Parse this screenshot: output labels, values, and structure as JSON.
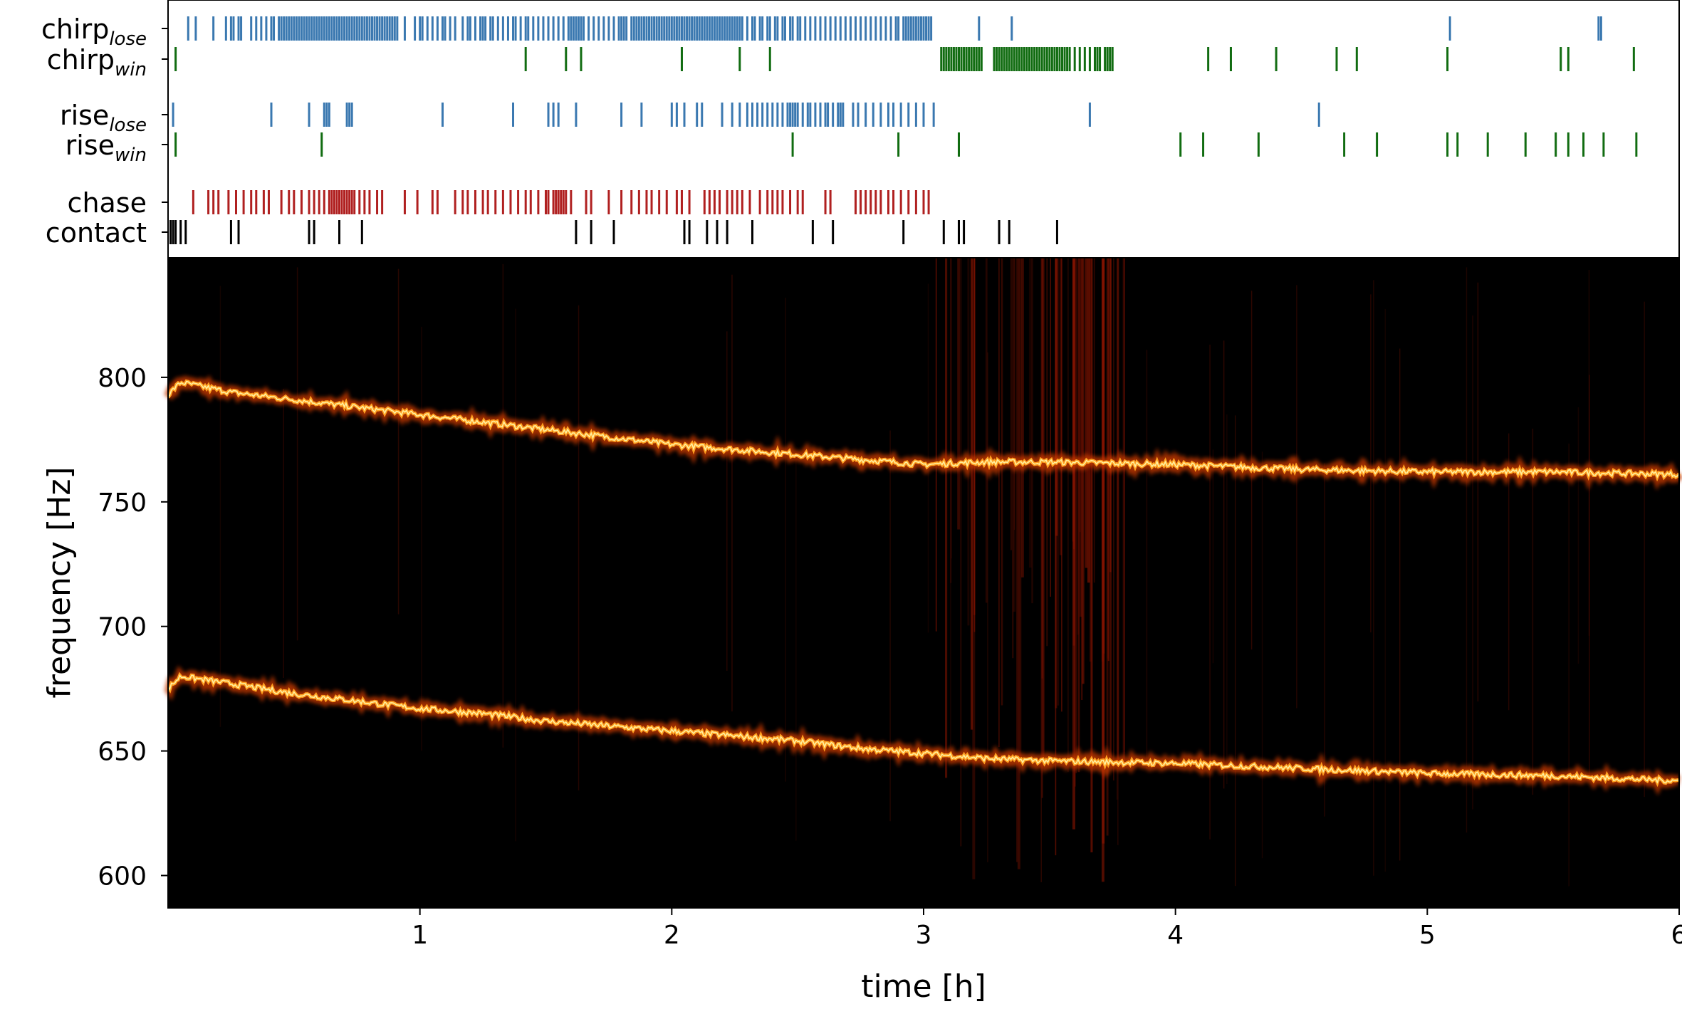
{
  "chart_data": [
    {
      "type": "event_raster",
      "xlim": [
        0,
        6
      ],
      "x_unit": "h",
      "rows": [
        {
          "key": "chirp_lose",
          "label_main": "chirp",
          "label_sub": "lose",
          "color": "#3a78b0",
          "events": [
            0.08,
            0.11,
            0.18,
            0.23,
            0.25,
            0.26,
            0.28,
            0.29,
            0.33,
            0.35,
            0.37,
            0.39,
            0.41,
            0.42,
            0.44,
            0.45,
            0.46,
            0.47,
            0.48,
            0.49,
            0.5,
            0.51,
            0.52,
            0.53,
            0.54,
            0.55,
            0.56,
            0.57,
            0.58,
            0.59,
            0.6,
            0.61,
            0.62,
            0.63,
            0.64,
            0.65,
            0.66,
            0.67,
            0.68,
            0.69,
            0.7,
            0.71,
            0.72,
            0.73,
            0.74,
            0.75,
            0.76,
            0.77,
            0.78,
            0.79,
            0.8,
            0.81,
            0.82,
            0.83,
            0.84,
            0.85,
            0.86,
            0.87,
            0.88,
            0.89,
            0.9,
            0.91,
            0.94,
            0.98,
            1.0,
            1.01,
            1.03,
            1.05,
            1.07,
            1.09,
            1.1,
            1.12,
            1.14,
            1.17,
            1.19,
            1.2,
            1.22,
            1.24,
            1.25,
            1.26,
            1.28,
            1.29,
            1.31,
            1.33,
            1.35,
            1.37,
            1.38,
            1.4,
            1.42,
            1.43,
            1.45,
            1.47,
            1.49,
            1.51,
            1.53,
            1.55,
            1.57,
            1.59,
            1.6,
            1.61,
            1.62,
            1.63,
            1.64,
            1.65,
            1.67,
            1.69,
            1.71,
            1.73,
            1.75,
            1.77,
            1.79,
            1.8,
            1.81,
            1.82,
            1.84,
            1.85,
            1.86,
            1.87,
            1.88,
            1.89,
            1.9,
            1.91,
            1.92,
            1.93,
            1.94,
            1.95,
            1.96,
            1.97,
            1.98,
            1.99,
            2.0,
            2.01,
            2.02,
            2.03,
            2.04,
            2.05,
            2.06,
            2.07,
            2.08,
            2.09,
            2.1,
            2.11,
            2.12,
            2.13,
            2.14,
            2.15,
            2.16,
            2.17,
            2.18,
            2.19,
            2.2,
            2.21,
            2.22,
            2.23,
            2.24,
            2.25,
            2.26,
            2.27,
            2.28,
            2.3,
            2.32,
            2.33,
            2.35,
            2.36,
            2.38,
            2.39,
            2.41,
            2.42,
            2.44,
            2.45,
            2.47,
            2.48,
            2.5,
            2.51,
            2.53,
            2.55,
            2.57,
            2.59,
            2.61,
            2.63,
            2.65,
            2.67,
            2.69,
            2.71,
            2.73,
            2.75,
            2.77,
            2.79,
            2.81,
            2.83,
            2.85,
            2.87,
            2.89,
            2.9,
            2.92,
            2.93,
            2.94,
            2.95,
            2.96,
            2.97,
            2.98,
            2.99,
            3.0,
            3.01,
            3.02,
            3.03,
            3.22,
            3.35,
            5.09,
            5.68,
            5.69
          ]
        },
        {
          "key": "chirp_win",
          "label_main": "chirp",
          "label_sub": "win",
          "color": "#116c11",
          "events": [
            0.03,
            1.42,
            1.58,
            1.64,
            2.04,
            2.27,
            2.39,
            3.07,
            3.08,
            3.09,
            3.1,
            3.11,
            3.12,
            3.13,
            3.14,
            3.15,
            3.16,
            3.17,
            3.18,
            3.19,
            3.2,
            3.21,
            3.22,
            3.23,
            3.28,
            3.29,
            3.3,
            3.31,
            3.32,
            3.33,
            3.34,
            3.35,
            3.36,
            3.37,
            3.38,
            3.39,
            3.4,
            3.41,
            3.42,
            3.43,
            3.44,
            3.45,
            3.46,
            3.47,
            3.48,
            3.49,
            3.5,
            3.51,
            3.52,
            3.53,
            3.54,
            3.55,
            3.56,
            3.57,
            3.58,
            3.6,
            3.62,
            3.64,
            3.66,
            3.68,
            3.69,
            3.7,
            3.72,
            3.73,
            3.74,
            3.75,
            4.13,
            4.22,
            4.4,
            4.64,
            4.72,
            5.08,
            5.53,
            5.56,
            5.82
          ]
        },
        {
          "key": "rise_lose",
          "label_main": "rise",
          "label_sub": "lose",
          "color": "#3a78b0",
          "events": [
            0.02,
            0.41,
            0.56,
            0.62,
            0.63,
            0.64,
            0.71,
            0.72,
            0.73,
            1.09,
            1.37,
            1.51,
            1.53,
            1.55,
            1.62,
            1.8,
            1.88,
            2.0,
            2.02,
            2.05,
            2.1,
            2.12,
            2.2,
            2.24,
            2.27,
            2.3,
            2.32,
            2.34,
            2.36,
            2.38,
            2.4,
            2.42,
            2.44,
            2.46,
            2.47,
            2.48,
            2.49,
            2.5,
            2.52,
            2.54,
            2.55,
            2.57,
            2.59,
            2.61,
            2.62,
            2.64,
            2.66,
            2.67,
            2.68,
            2.72,
            2.74,
            2.77,
            2.8,
            2.83,
            2.86,
            2.88,
            2.91,
            2.94,
            2.97,
            3.0,
            3.04,
            3.66,
            4.57
          ]
        },
        {
          "key": "rise_win",
          "label_main": "rise",
          "label_sub": "win",
          "color": "#116c11",
          "events": [
            0.03,
            0.61,
            2.48,
            2.9,
            3.14,
            4.02,
            4.11,
            4.33,
            4.67,
            4.8,
            5.08,
            5.12,
            5.24,
            5.39,
            5.51,
            5.56,
            5.62,
            5.7,
            5.83
          ]
        },
        {
          "key": "chase",
          "label_main": "chase",
          "label_sub": "",
          "color": "#b02020",
          "events": [
            0.1,
            0.16,
            0.18,
            0.2,
            0.24,
            0.27,
            0.3,
            0.33,
            0.35,
            0.38,
            0.4,
            0.45,
            0.48,
            0.5,
            0.53,
            0.56,
            0.58,
            0.6,
            0.62,
            0.64,
            0.65,
            0.66,
            0.67,
            0.68,
            0.69,
            0.7,
            0.71,
            0.72,
            0.73,
            0.74,
            0.76,
            0.78,
            0.8,
            0.83,
            0.85,
            0.94,
            0.99,
            1.05,
            1.07,
            1.14,
            1.17,
            1.19,
            1.22,
            1.25,
            1.27,
            1.3,
            1.33,
            1.36,
            1.39,
            1.42,
            1.44,
            1.47,
            1.5,
            1.51,
            1.53,
            1.54,
            1.55,
            1.56,
            1.57,
            1.58,
            1.6,
            1.66,
            1.68,
            1.75,
            1.8,
            1.84,
            1.87,
            1.9,
            1.92,
            1.95,
            1.98,
            2.02,
            2.04,
            2.07,
            2.13,
            2.15,
            2.17,
            2.19,
            2.22,
            2.24,
            2.26,
            2.28,
            2.31,
            2.35,
            2.38,
            2.4,
            2.42,
            2.44,
            2.47,
            2.5,
            2.52,
            2.61,
            2.63,
            2.73,
            2.75,
            2.77,
            2.79,
            2.81,
            2.83,
            2.86,
            2.88,
            2.91,
            2.94,
            2.97,
            3.0,
            3.02
          ]
        },
        {
          "key": "contact",
          "label_main": "contact",
          "label_sub": "",
          "color": "#000000",
          "events": [
            0.01,
            0.02,
            0.03,
            0.05,
            0.07,
            0.25,
            0.28,
            0.56,
            0.58,
            0.68,
            0.77,
            1.62,
            1.68,
            1.77,
            2.05,
            2.07,
            2.14,
            2.18,
            2.22,
            2.32,
            2.56,
            2.64,
            2.92,
            3.08,
            3.14,
            3.16,
            3.3,
            3.34,
            3.53
          ]
        }
      ]
    },
    {
      "type": "heatmap",
      "subtype": "spectrogram",
      "xlabel": "time [h]",
      "ylabel": "frequency [Hz]",
      "xlim": [
        0,
        6
      ],
      "ylim": [
        587,
        848
      ],
      "xticks": [
        1,
        2,
        3,
        4,
        5,
        6
      ],
      "yticks": [
        600,
        650,
        700,
        750,
        800
      ],
      "colormap": "hot",
      "background": "#000000",
      "series": [
        {
          "x": [
            0,
            0.05,
            0.25,
            0.5,
            0.75,
            1.0,
            1.25,
            1.5,
            1.75,
            2.0,
            2.25,
            2.5,
            2.75,
            3.0,
            3.25,
            3.5,
            4.0,
            4.5,
            5.0,
            5.5,
            6.0
          ],
          "y": [
            793,
            798,
            794,
            791,
            788,
            785,
            782,
            779,
            776,
            773,
            771,
            769,
            767,
            765,
            766,
            766,
            765,
            763,
            762,
            762,
            761
          ]
        },
        {
          "x": [
            0,
            0.05,
            0.25,
            0.5,
            0.75,
            1.0,
            1.25,
            1.5,
            1.75,
            2.0,
            2.25,
            2.5,
            2.75,
            3.0,
            3.25,
            3.5,
            4.0,
            4.5,
            5.0,
            5.5,
            6.0
          ],
          "y": [
            675,
            680,
            677,
            673,
            670,
            667,
            665,
            662,
            660,
            658,
            656,
            654,
            651,
            649,
            647,
            646,
            645,
            643,
            641,
            640,
            638
          ]
        }
      ]
    }
  ]
}
